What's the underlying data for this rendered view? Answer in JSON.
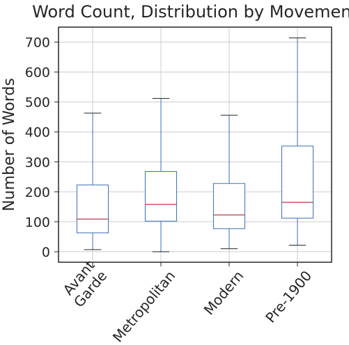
{
  "chart_data": {
    "type": "boxplot",
    "title": "Word Count, Distribution by Movement",
    "xlabel": "",
    "ylabel": "Number of Words",
    "ylim": [
      -35,
      750
    ],
    "yticks": [
      0,
      100,
      200,
      300,
      400,
      500,
      600,
      700
    ],
    "grid": true,
    "categories": [
      {
        "lines": [
          "Avant",
          "Garde"
        ]
      },
      {
        "lines": [
          "Metropolitan"
        ]
      },
      {
        "lines": [
          "Modern"
        ]
      },
      {
        "lines": [
          "Pre-1900"
        ]
      }
    ],
    "boxes": [
      {
        "whisker_low": 7,
        "q1": 63,
        "median": 109,
        "q3": 223,
        "whisker_high": 463
      },
      {
        "whisker_low": 0,
        "q1": 102,
        "median": 158,
        "q3": 268,
        "whisker_high": 512
      },
      {
        "whisker_low": 10,
        "q1": 77,
        "median": 123,
        "q3": 228,
        "whisker_high": 456
      },
      {
        "whisker_low": 22,
        "q1": 112,
        "median": 165,
        "q3": 353,
        "whisker_high": 714
      }
    ],
    "colors": {
      "box": "#3a6fb0",
      "median": "#b5374a",
      "whisker_cap": "#262626",
      "grid": "#cccccc",
      "axes": "#262626"
    }
  }
}
